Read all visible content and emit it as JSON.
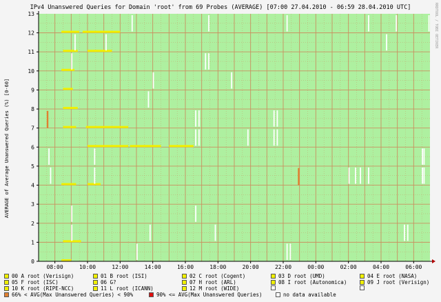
{
  "chart_data": {
    "type": "heatmap",
    "title": "IPv4 Unanswered Queries for Domain 'root' from 69 Probes (AVERAGE)  [07:00 27.04.2010 - 06:59 28.04.2010 UTC]",
    "ylabel": "AVERAGE of Average Unanswered Queries (%) [0-60]",
    "watermark": "RRDTOOL / TOBI OETIKER",
    "x_ticks": [
      "08:00",
      "10:00",
      "12:00",
      "14:00",
      "16:00",
      "18:00",
      "20:00",
      "22:00",
      "00:00",
      "02:00",
      "04:00",
      "06:00"
    ],
    "y_ticks": [
      "0",
      "1",
      "2",
      "3",
      "4",
      "5",
      "6",
      "7",
      "8",
      "9",
      "10",
      "11",
      "12",
      "13"
    ],
    "ylim": [
      0,
      13
    ],
    "colors": {
      "ok": "#aef0a0",
      "low": "#f0f000",
      "mid": "#e08030",
      "high": "#e01010",
      "nodata": "#ffffff",
      "grid": "#c99060",
      "axis": "#000000",
      "arrow": "#b00000"
    },
    "series_yellow": [
      {
        "row": 0,
        "segments": [
          [
            1.4,
            2.0
          ]
        ]
      },
      {
        "row": 1,
        "segments": [
          [
            1.5,
            2.6
          ]
        ]
      },
      {
        "row": 4,
        "segments": [
          [
            1.4,
            2.3
          ],
          [
            3.0,
            3.8
          ]
        ]
      },
      {
        "row": 6,
        "segments": [
          [
            3.0,
            5.5
          ],
          [
            5.6,
            7.5
          ],
          [
            8.0,
            9.5
          ]
        ]
      },
      {
        "row": 7,
        "segments": [
          [
            1.5,
            2.3
          ],
          [
            2.9,
            5.5
          ]
        ]
      },
      {
        "row": 8,
        "segments": [
          [
            1.5,
            2.4
          ]
        ]
      },
      {
        "row": 9,
        "segments": [
          [
            1.5,
            2.1
          ]
        ]
      },
      {
        "row": 10,
        "segments": [
          [
            1.4,
            2.2
          ]
        ]
      },
      {
        "row": 11,
        "segments": [
          [
            1.5,
            2.4
          ],
          [
            3.0,
            4.5
          ]
        ]
      },
      {
        "row": 12,
        "segments": [
          [
            1.4,
            2.5
          ],
          [
            2.7,
            5.0
          ]
        ]
      }
    ],
    "series_orange": [
      {
        "row": 4,
        "segments": [
          [
            15.9,
            16.0
          ]
        ]
      },
      {
        "row": 7,
        "segments": [
          [
            0.5,
            0.6
          ]
        ]
      }
    ],
    "nodata_marks": [
      {
        "row": 0,
        "x": [
          6.0,
          15.2,
          15.4
        ]
      },
      {
        "row": 1,
        "x": [
          2.0,
          6.8,
          10.8,
          22.4,
          22.6
        ]
      },
      {
        "row": 2,
        "x": [
          2.0,
          9.6
        ]
      },
      {
        "row": 4,
        "x": [
          0.7,
          3.4,
          19.0,
          19.4,
          19.7,
          20.2,
          23.5,
          23.6
        ]
      },
      {
        "row": 5,
        "x": [
          0.6,
          3.4,
          23.5,
          23.6
        ]
      },
      {
        "row": 6,
        "x": [
          9.6,
          9.8,
          12.8,
          14.4,
          14.6
        ]
      },
      {
        "row": 7,
        "x": [
          9.6,
          9.8,
          14.4,
          14.6
        ]
      },
      {
        "row": 8,
        "x": [
          6.7
        ]
      },
      {
        "row": 9,
        "x": [
          7.0,
          11.8
        ]
      },
      {
        "row": 10,
        "x": [
          2.0,
          10.2,
          10.4
        ]
      },
      {
        "row": 11,
        "x": [
          2.2,
          4.1,
          21.3
        ]
      },
      {
        "row": 12,
        "x": [
          5.7,
          10.4,
          15.2,
          20.2,
          21.9,
          23.9
        ]
      }
    ],
    "legend": [
      {
        "label": "00 A root (Verisign)",
        "color": "#f0f000"
      },
      {
        "label": "01 B root (ISI)",
        "color": "#f0f000"
      },
      {
        "label": "02 C root (Cogent)",
        "color": "#f0f000"
      },
      {
        "label": "03 D root (UMD)",
        "color": "#f0f000"
      },
      {
        "label": "04 E root (NASA)",
        "color": "#f0f000"
      },
      {
        "label": "05 F root (ISC)",
        "color": "#f0f000"
      },
      {
        "label": "06 G?",
        "color": "#f0f000"
      },
      {
        "label": "07 H root (ARL)",
        "color": "#f0f000"
      },
      {
        "label": "08 I root (Autonomica)",
        "color": "#f0f000"
      },
      {
        "label": "09 J root (Verisign)",
        "color": "#f0f000"
      },
      {
        "label": "10 K root (RIPE-NCC)",
        "color": "#f0f000"
      },
      {
        "label": "11 L root (ICANN)",
        "color": "#f0f000"
      },
      {
        "label": "12 M root (WIDE)",
        "color": "#f0f000"
      },
      {
        "label": "",
        "color": "#ffffff"
      },
      {
        "label": "",
        "color": "#ffffff"
      },
      {
        "label": "66% < AVG(Max Unanswered Queries) < 90%",
        "color": "#e08030"
      },
      {
        "label": "90% <= AVG(Max Unanswered Queries)",
        "color": "#e01010"
      },
      {
        "label": "no data available",
        "color": "#ffffff"
      }
    ]
  }
}
